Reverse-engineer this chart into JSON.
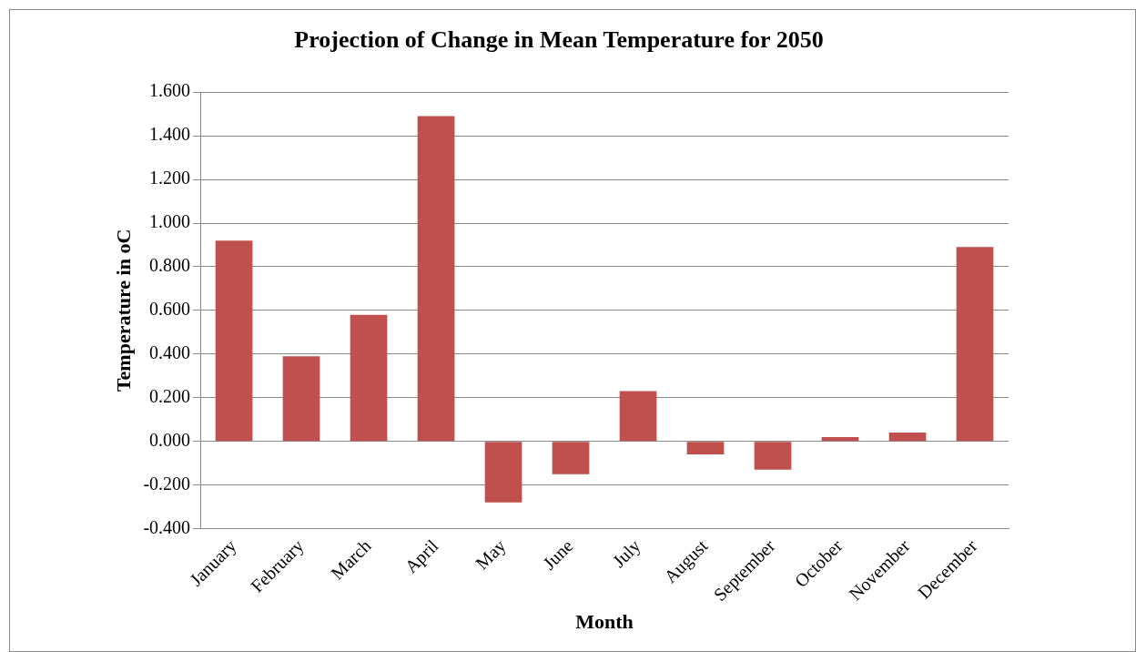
{
  "chart_data": {
    "type": "bar",
    "title": "Projection of Change in Mean Temperature for 2050",
    "xlabel": "Month",
    "ylabel": "Temperature in oC",
    "categories": [
      "January",
      "February",
      "March",
      "April",
      "May",
      "June",
      "July",
      "August",
      "September",
      "October",
      "November",
      "December"
    ],
    "values": [
      0.92,
      0.39,
      0.58,
      1.49,
      -0.28,
      -0.15,
      0.23,
      -0.06,
      -0.13,
      0.02,
      0.04,
      0.89
    ],
    "color": "#c0504d",
    "ylim": [
      -0.4,
      1.6
    ],
    "yticks": [
      {
        "value": -0.4,
        "label": "-0.400"
      },
      {
        "value": -0.2,
        "label": "-0.200"
      },
      {
        "value": 0,
        "label": "0.000"
      },
      {
        "value": 0.2,
        "label": "0.200"
      },
      {
        "value": 0.4,
        "label": "0.400"
      },
      {
        "value": 0.6,
        "label": "0.600"
      },
      {
        "value": 0.8,
        "label": "0.800"
      },
      {
        "value": 1.0,
        "label": "1.000"
      },
      {
        "value": 1.2,
        "label": "1.200"
      },
      {
        "value": 1.4,
        "label": "1.400"
      },
      {
        "value": 1.6,
        "label": "1.600"
      }
    ],
    "grid": "y",
    "legend": false
  }
}
